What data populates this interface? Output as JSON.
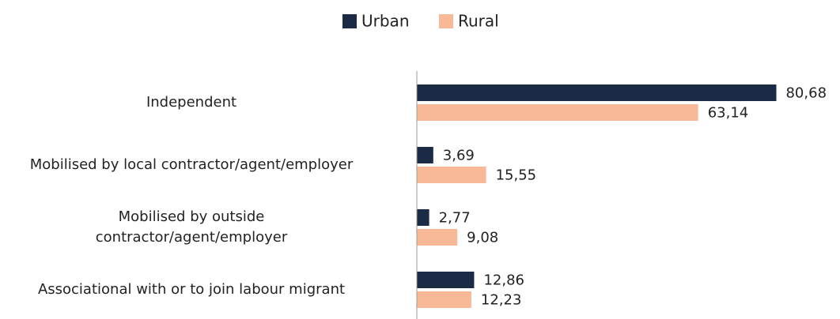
{
  "chart_data": {
    "type": "bar",
    "orientation": "horizontal",
    "categories": [
      "Independent",
      "Mobilised by local contractor/agent/employer",
      "Mobilised by outside\ncontractor/agent/employer",
      "Associational with or to join labour migrant"
    ],
    "series": [
      {
        "name": "Urban",
        "color": "#1b2a45",
        "values": [
          80.68,
          3.69,
          2.77,
          12.86
        ],
        "value_labels": [
          "80,68",
          "3,69",
          "2,77",
          "12,86"
        ]
      },
      {
        "name": "Rural",
        "color": "#f9b996",
        "values": [
          63.14,
          15.55,
          9.08,
          12.23
        ],
        "value_labels": [
          "63,14",
          "15,55",
          "9,08",
          "12,23"
        ]
      }
    ],
    "xlim": [
      0,
      90
    ]
  }
}
